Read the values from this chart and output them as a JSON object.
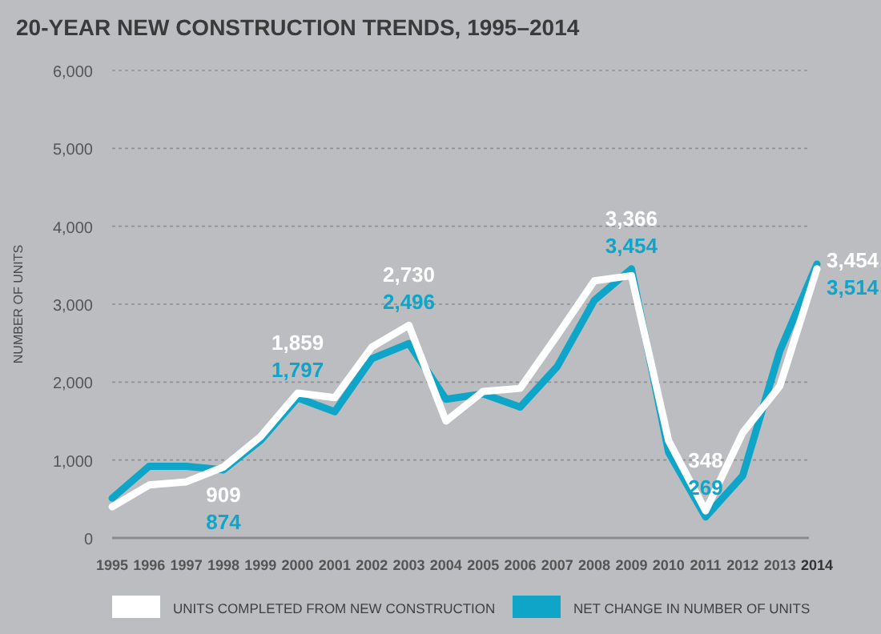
{
  "chart_data": {
    "type": "line",
    "title": "20-YEAR NEW CONSTRUCTION TRENDS, 1995–2014",
    "ylabel": "NUMBER OF UNITS",
    "categories": [
      "1995",
      "1996",
      "1997",
      "1998",
      "1999",
      "2000",
      "2001",
      "2002",
      "2003",
      "2004",
      "2005",
      "2006",
      "2007",
      "2008",
      "2009",
      "2010",
      "2011",
      "2012",
      "2013",
      "2014"
    ],
    "series": [
      {
        "name": "UNITS COMPLETED FROM NEW CONSTRUCTION",
        "color": "#ffffff",
        "values": [
          400,
          680,
          720,
          909,
          1300,
          1859,
          1800,
          2450,
          2730,
          1500,
          1880,
          1920,
          2600,
          3300,
          3366,
          1250,
          348,
          1350,
          1950,
          3454
        ],
        "value_labels": [
          null,
          null,
          null,
          "909",
          null,
          "1,859",
          null,
          null,
          "2,730",
          null,
          null,
          null,
          null,
          null,
          "3,366",
          null,
          "348",
          null,
          null,
          "3,454"
        ]
      },
      {
        "name": "NET CHANGE IN NUMBER OF UNITS",
        "color": "#0ea5c8",
        "values": [
          510,
          920,
          920,
          874,
          1250,
          1797,
          1620,
          2300,
          2496,
          1780,
          1850,
          1680,
          2200,
          3050,
          3454,
          1100,
          269,
          800,
          2400,
          3514
        ],
        "value_labels": [
          null,
          null,
          null,
          "874",
          null,
          "1,797",
          null,
          null,
          "2,496",
          null,
          null,
          null,
          null,
          null,
          "3,454",
          null,
          "269",
          null,
          null,
          "3,514"
        ]
      }
    ],
    "ylim": [
      0,
      6000
    ],
    "yticks": [
      {
        "value": 0,
        "label": "0"
      },
      {
        "value": 1000,
        "label": "1,000"
      },
      {
        "value": 2000,
        "label": "2,000"
      },
      {
        "value": 3000,
        "label": "3,000"
      },
      {
        "value": 4000,
        "label": "4,000"
      },
      {
        "value": 5000,
        "label": "5,000"
      },
      {
        "value": 6000,
        "label": "6,000"
      }
    ],
    "grid": "y",
    "legend": "bottom",
    "marker": "none",
    "line_style": "solid"
  }
}
